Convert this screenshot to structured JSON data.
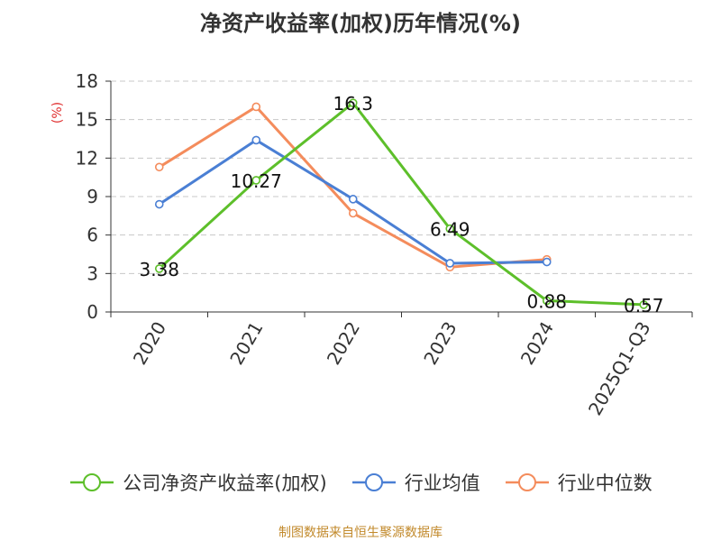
{
  "title": "净资产收益率(加权)历年情况(%)",
  "source": "制图数据来自恒生聚源数据库",
  "chart_data": {
    "type": "line",
    "title": "净资产收益率(加权)历年情况(%)",
    "xlabel": "",
    "ylabel": "(%)",
    "categories": [
      "2020",
      "2021",
      "2022",
      "2023",
      "2024",
      "2025Q1-Q3"
    ],
    "ylim": [
      0,
      18
    ],
    "yticks": [
      0,
      3,
      6,
      9,
      12,
      15,
      18
    ],
    "grid": "horizontal dashed",
    "legend_position": "bottom",
    "series": [
      {
        "name": "公司净资产收益率(加权)",
        "color": "#5dbf2a",
        "values": [
          3.38,
          10.27,
          16.3,
          6.49,
          0.88,
          0.57
        ],
        "labels": [
          "3.38",
          "10.27",
          "16.3",
          "6.49",
          "0.88",
          "0.57"
        ]
      },
      {
        "name": "行业均值",
        "color": "#4a7fd4",
        "values": [
          8.4,
          13.4,
          8.8,
          3.8,
          3.9,
          null
        ]
      },
      {
        "name": "行业中位数",
        "color": "#f48c5c",
        "values": [
          11.3,
          16.0,
          7.7,
          3.5,
          4.1,
          null
        ]
      }
    ]
  }
}
